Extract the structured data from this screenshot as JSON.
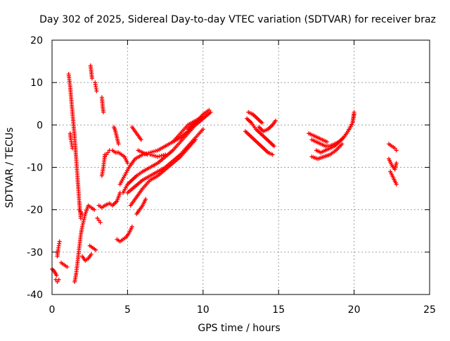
{
  "chart_data": {
    "type": "scatter",
    "title": "Day 302 of 2025, Sidereal Day-to-day VTEC variation (SDTVAR) for receiver braz",
    "xlabel": "GPS time / hours",
    "ylabel": "SDTVAR / TECUs",
    "xlim": [
      0,
      25
    ],
    "ylim": [
      -40,
      20
    ],
    "xticks": [
      "0",
      "5",
      "10",
      "15",
      "20",
      "25"
    ],
    "yticks": [
      "-40",
      "-30",
      "-20",
      "-10",
      "0",
      "10",
      "20"
    ],
    "grid": true,
    "marker": "plus",
    "series": [
      {
        "color": "#ff0000",
        "segments": [
          {
            "x": [
              0.0,
              0.15,
              0.3
            ],
            "y": [
              -34.0,
              -34.5,
              -35.5
            ]
          },
          {
            "x": [
              0.25,
              0.35,
              0.45
            ],
            "y": [
              -36.5,
              -37.0,
              -36.5
            ]
          },
          {
            "x": [
              0.35,
              0.4,
              0.45,
              0.5
            ],
            "y": [
              -31.0,
              -29.5,
              -28.5,
              -27.5
            ]
          },
          {
            "x": [
              0.6,
              0.8,
              1.0
            ],
            "y": [
              -32.5,
              -33.0,
              -33.5
            ]
          },
          {
            "x": [
              1.1,
              1.2,
              1.3,
              1.4,
              1.5,
              1.6,
              1.7,
              1.8,
              1.9
            ],
            "y": [
              12.0,
              9.0,
              5.0,
              1.0,
              -3.0,
              -8.0,
              -13.0,
              -18.0,
              -22.0
            ]
          },
          {
            "x": [
              1.2,
              1.25,
              1.3,
              1.35
            ],
            "y": [
              -2.0,
              -3.5,
              -4.5,
              -5.5
            ]
          },
          {
            "x": [
              1.5,
              1.6,
              1.7,
              1.8,
              1.9,
              2.0,
              2.2,
              2.4,
              2.6,
              2.8
            ],
            "y": [
              -37.0,
              -35.0,
              -32.0,
              -29.0,
              -26.0,
              -24.0,
              -21.0,
              -19.0,
              -19.5,
              -20.0
            ]
          },
          {
            "x": [
              1.8,
              1.9,
              2.0
            ],
            "y": [
              -20.0,
              -20.5,
              -21.0
            ]
          },
          {
            "x": [
              2.0,
              2.2,
              2.4,
              2.6
            ],
            "y": [
              -31.0,
              -32.0,
              -31.5,
              -30.5
            ]
          },
          {
            "x": [
              2.5,
              2.7,
              2.9
            ],
            "y": [
              -28.5,
              -29.0,
              -29.5
            ]
          },
          {
            "x": [
              2.55,
              2.6,
              2.65
            ],
            "y": [
              14.0,
              12.5,
              11.0
            ]
          },
          {
            "x": [
              2.85,
              2.9,
              2.95
            ],
            "y": [
              10.0,
              9.0,
              8.0
            ]
          },
          {
            "x": [
              3.0,
              3.1,
              3.2
            ],
            "y": [
              -22.0,
              -22.5,
              -23.0
            ]
          },
          {
            "x": [
              3.3,
              3.35,
              3.4
            ],
            "y": [
              6.5,
              4.5,
              3.0
            ]
          },
          {
            "x": [
              3.1,
              3.3,
              3.5,
              3.8,
              4.0,
              4.3,
              4.5
            ],
            "y": [
              -19.0,
              -19.5,
              -19.0,
              -18.5,
              -19.0,
              -18.0,
              -16.0
            ]
          },
          {
            "x": [
              3.3,
              3.4,
              3.5
            ],
            "y": [
              -12.0,
              -10.0,
              -7.0
            ]
          },
          {
            "x": [
              3.5,
              3.6,
              3.7,
              3.8
            ],
            "y": [
              -7.5,
              -7.0,
              -6.5,
              -6.0
            ]
          },
          {
            "x": [
              4.1,
              4.2,
              4.3,
              4.4
            ],
            "y": [
              -0.5,
              -1.5,
              -3.0,
              -4.5
            ]
          },
          {
            "x": [
              4.0,
              4.2,
              4.4,
              4.6,
              4.8,
              5.0
            ],
            "y": [
              -6.0,
              -6.5,
              -6.5,
              -7.0,
              -7.5,
              -9.0
            ]
          },
          {
            "x": [
              4.3,
              4.5,
              4.7,
              4.9,
              5.1,
              5.3
            ],
            "y": [
              -27.0,
              -27.5,
              -27.0,
              -26.5,
              -25.5,
              -24.0
            ]
          },
          {
            "x": [
              4.7,
              5.0,
              5.3,
              5.6,
              6.0,
              6.5,
              7.0,
              7.5,
              8.0,
              8.5,
              9.0,
              9.5,
              10.0,
              10.5
            ],
            "y": [
              -16.0,
              -14.0,
              -13.0,
              -12.0,
              -11.0,
              -10.0,
              -9.0,
              -7.5,
              -6.0,
              -4.0,
              -2.0,
              0.0,
              1.5,
              3.0
            ]
          },
          {
            "x": [
              4.5,
              4.8,
              5.1,
              5.5,
              6.0,
              6.5,
              7.0,
              7.5,
              8.0,
              8.5,
              9.0,
              9.5,
              10.0
            ],
            "y": [
              -14.0,
              -12.0,
              -10.0,
              -8.0,
              -7.0,
              -6.5,
              -6.0,
              -5.0,
              -4.0,
              -3.0,
              -1.5,
              0.5,
              2.0
            ]
          },
          {
            "x": [
              5.0,
              5.5,
              6.0,
              6.5,
              7.0,
              7.5,
              8.0,
              8.5,
              9.0,
              9.5,
              10.0
            ],
            "y": [
              -16.0,
              -14.5,
              -13.0,
              -12.0,
              -11.0,
              -10.0,
              -8.5,
              -7.0,
              -5.0,
              -3.0,
              -1.0
            ]
          },
          {
            "x": [
              5.2,
              5.6,
              6.0,
              6.5,
              7.0,
              7.5,
              8.0,
              8.5,
              9.0,
              9.5
            ],
            "y": [
              -19.0,
              -17.0,
              -15.0,
              -13.0,
              -12.0,
              -10.5,
              -9.0,
              -7.5,
              -5.5,
              -3.5
            ]
          },
          {
            "x": [
              5.3,
              5.5,
              5.7,
              5.9
            ],
            "y": [
              -0.5,
              -1.5,
              -2.5,
              -3.5
            ]
          },
          {
            "x": [
              5.6,
              5.8,
              6.0,
              6.2
            ],
            "y": [
              -21.0,
              -20.0,
              -19.0,
              -17.5
            ]
          },
          {
            "x": [
              5.7,
              6.0,
              6.3
            ],
            "y": [
              -6.0,
              -6.5,
              -7.0
            ]
          },
          {
            "x": [
              6.5,
              7.0,
              7.5
            ],
            "y": [
              -7.0,
              -7.5,
              -7.0
            ]
          },
          {
            "x": [
              8.0,
              8.5,
              9.0,
              9.5,
              10.0
            ],
            "y": [
              -4.0,
              -2.0,
              0.0,
              1.0,
              2.0
            ]
          },
          {
            "x": [
              9.0,
              9.5,
              10.0,
              10.4
            ],
            "y": [
              -1.0,
              0.5,
              2.5,
              3.5
            ]
          },
          {
            "x": [
              12.8,
              13.1,
              13.4,
              13.7,
              14.0,
              14.3,
              14.6
            ],
            "y": [
              -1.5,
              -2.5,
              -3.5,
              -4.5,
              -5.5,
              -6.5,
              -7.0
            ]
          },
          {
            "x": [
              12.9,
              13.2,
              13.5,
              13.8,
              14.1,
              14.4,
              14.7
            ],
            "y": [
              1.5,
              0.5,
              -1.0,
              -2.0,
              -3.0,
              -4.0,
              -5.0
            ]
          },
          {
            "x": [
              13.0,
              13.3,
              13.6,
              13.9
            ],
            "y": [
              3.0,
              2.5,
              1.5,
              0.5
            ]
          },
          {
            "x": [
              13.7,
              14.0,
              14.3,
              14.6,
              14.8
            ],
            "y": [
              -0.5,
              -1.5,
              -1.0,
              0.0,
              1.0
            ]
          },
          {
            "x": [
              17.0,
              17.3,
              17.6,
              17.9,
              18.2
            ],
            "y": [
              -2.0,
              -2.5,
              -3.0,
              -3.5,
              -4.0
            ]
          },
          {
            "x": [
              17.2,
              17.5,
              17.8,
              18.1,
              18.4,
              18.7,
              19.0,
              19.3,
              19.6,
              19.9,
              20.0
            ],
            "y": [
              -3.5,
              -4.0,
              -4.5,
              -5.0,
              -5.0,
              -4.5,
              -4.0,
              -3.0,
              -1.5,
              0.5,
              2.5
            ]
          },
          {
            "x": [
              17.5,
              17.8,
              18.1,
              18.4,
              18.7,
              19.0,
              19.3,
              19.6,
              19.9,
              20.0
            ],
            "y": [
              -6.0,
              -6.5,
              -6.0,
              -5.5,
              -5.0,
              -4.0,
              -3.0,
              -1.5,
              0.5,
              3.0
            ]
          },
          {
            "x": [
              17.2,
              17.6,
              18.0,
              18.4,
              18.8,
              19.2
            ],
            "y": [
              -7.5,
              -8.0,
              -7.5,
              -7.0,
              -6.0,
              -4.5
            ]
          },
          {
            "x": [
              22.3,
              22.5,
              22.7,
              22.8
            ],
            "y": [
              -4.5,
              -5.0,
              -5.5,
              -6.0
            ]
          },
          {
            "x": [
              22.3,
              22.5,
              22.7,
              22.8
            ],
            "y": [
              -8.0,
              -9.5,
              -10.5,
              -9.0
            ]
          },
          {
            "x": [
              22.4,
              22.6,
              22.8
            ],
            "y": [
              -11.0,
              -12.5,
              -14.0
            ]
          }
        ]
      }
    ]
  }
}
